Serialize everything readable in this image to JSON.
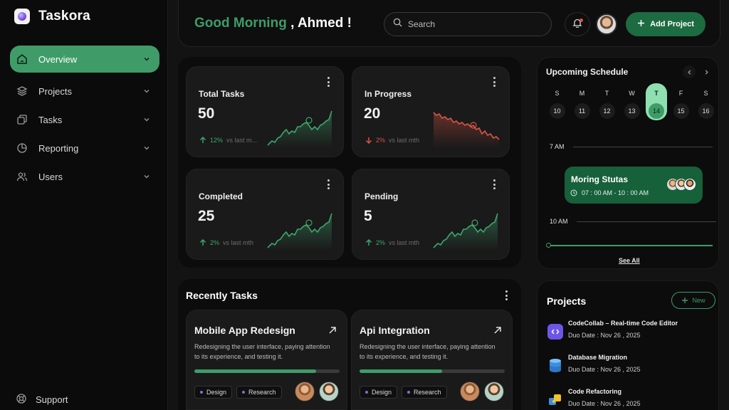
{
  "app": {
    "name": "Taskora"
  },
  "sidebar": {
    "items": [
      {
        "label": "Overview",
        "icon": "home-icon",
        "active": true
      },
      {
        "label": "Projects",
        "icon": "layers-icon"
      },
      {
        "label": "Tasks",
        "icon": "tasks-icon"
      },
      {
        "label": "Reporting",
        "icon": "pie-chart-icon"
      },
      {
        "label": "Users",
        "icon": "users-icon"
      }
    ],
    "support_label": "Support"
  },
  "header": {
    "greeting": "Good Morning",
    "user_name": ", Ahmed !",
    "search_placeholder": "Search",
    "add_project_label": "Add Project"
  },
  "stats": [
    {
      "title": "Total Tasks",
      "value": "50",
      "change": "12%",
      "direction": "up",
      "note": "vs last m...",
      "color": "#3ea56c"
    },
    {
      "title": "In Progress",
      "value": "20",
      "change": "2%",
      "direction": "down",
      "note": "vs last mth",
      "color": "#d75545"
    },
    {
      "title": "Completed",
      "value": "25",
      "change": "2%",
      "direction": "up",
      "note": "vs last mth",
      "color": "#3ea56c"
    },
    {
      "title": "Pending",
      "value": "5",
      "change": "2%",
      "direction": "up",
      "note": "vs last mth",
      "color": "#3ea56c"
    }
  ],
  "recent": {
    "title": "Recently Tasks",
    "tasks": [
      {
        "title": "Mobile App Redesign",
        "description": "Redesigning the user interface, paying attention to its experience, and testing it.",
        "progress": 0.84,
        "tags": [
          "Design",
          "Research"
        ]
      },
      {
        "title": "Api Integration",
        "description": "Redesigning the user interface, paying attention to its experience, and testing it.",
        "progress": 0.57,
        "tags": [
          "Design",
          "Research"
        ]
      }
    ]
  },
  "schedule": {
    "title": "Upcoming Schedule",
    "days": [
      {
        "letter": "S",
        "num": "10"
      },
      {
        "letter": "M",
        "num": "11"
      },
      {
        "letter": "T",
        "num": "12"
      },
      {
        "letter": "W",
        "num": "13"
      },
      {
        "letter": "T",
        "num": "14",
        "today": true
      },
      {
        "letter": "F",
        "num": "15"
      },
      {
        "letter": "S",
        "num": "16"
      }
    ],
    "time_start": "7 AM",
    "time_end": "10 AM",
    "event": {
      "title": "Moring Stutas",
      "time": "07 : 00 AM - 10 : 00 AM"
    },
    "see_all": "See All"
  },
  "projects": {
    "title": "Projects",
    "new_label": "New",
    "items": [
      {
        "name": "CodeCollab – Real-time Code Editor",
        "date": "Duo Date : Nov 26 , 2025",
        "icon": "code-icon",
        "color": "#7b5cf0"
      },
      {
        "name": "Database Migration",
        "date": "Duo Date : Nov 26 , 2025",
        "icon": "database-icon",
        "color": "#3b8de0"
      },
      {
        "name": "Code Refactoring",
        "date": "Duo Date : Nov 26 , 2025",
        "icon": "puzzle-icon",
        "color": "#f2c230"
      }
    ]
  },
  "theme": {
    "accent": "#3f9c68",
    "accent_dark": "#1d6b41",
    "down": "#d75545"
  }
}
